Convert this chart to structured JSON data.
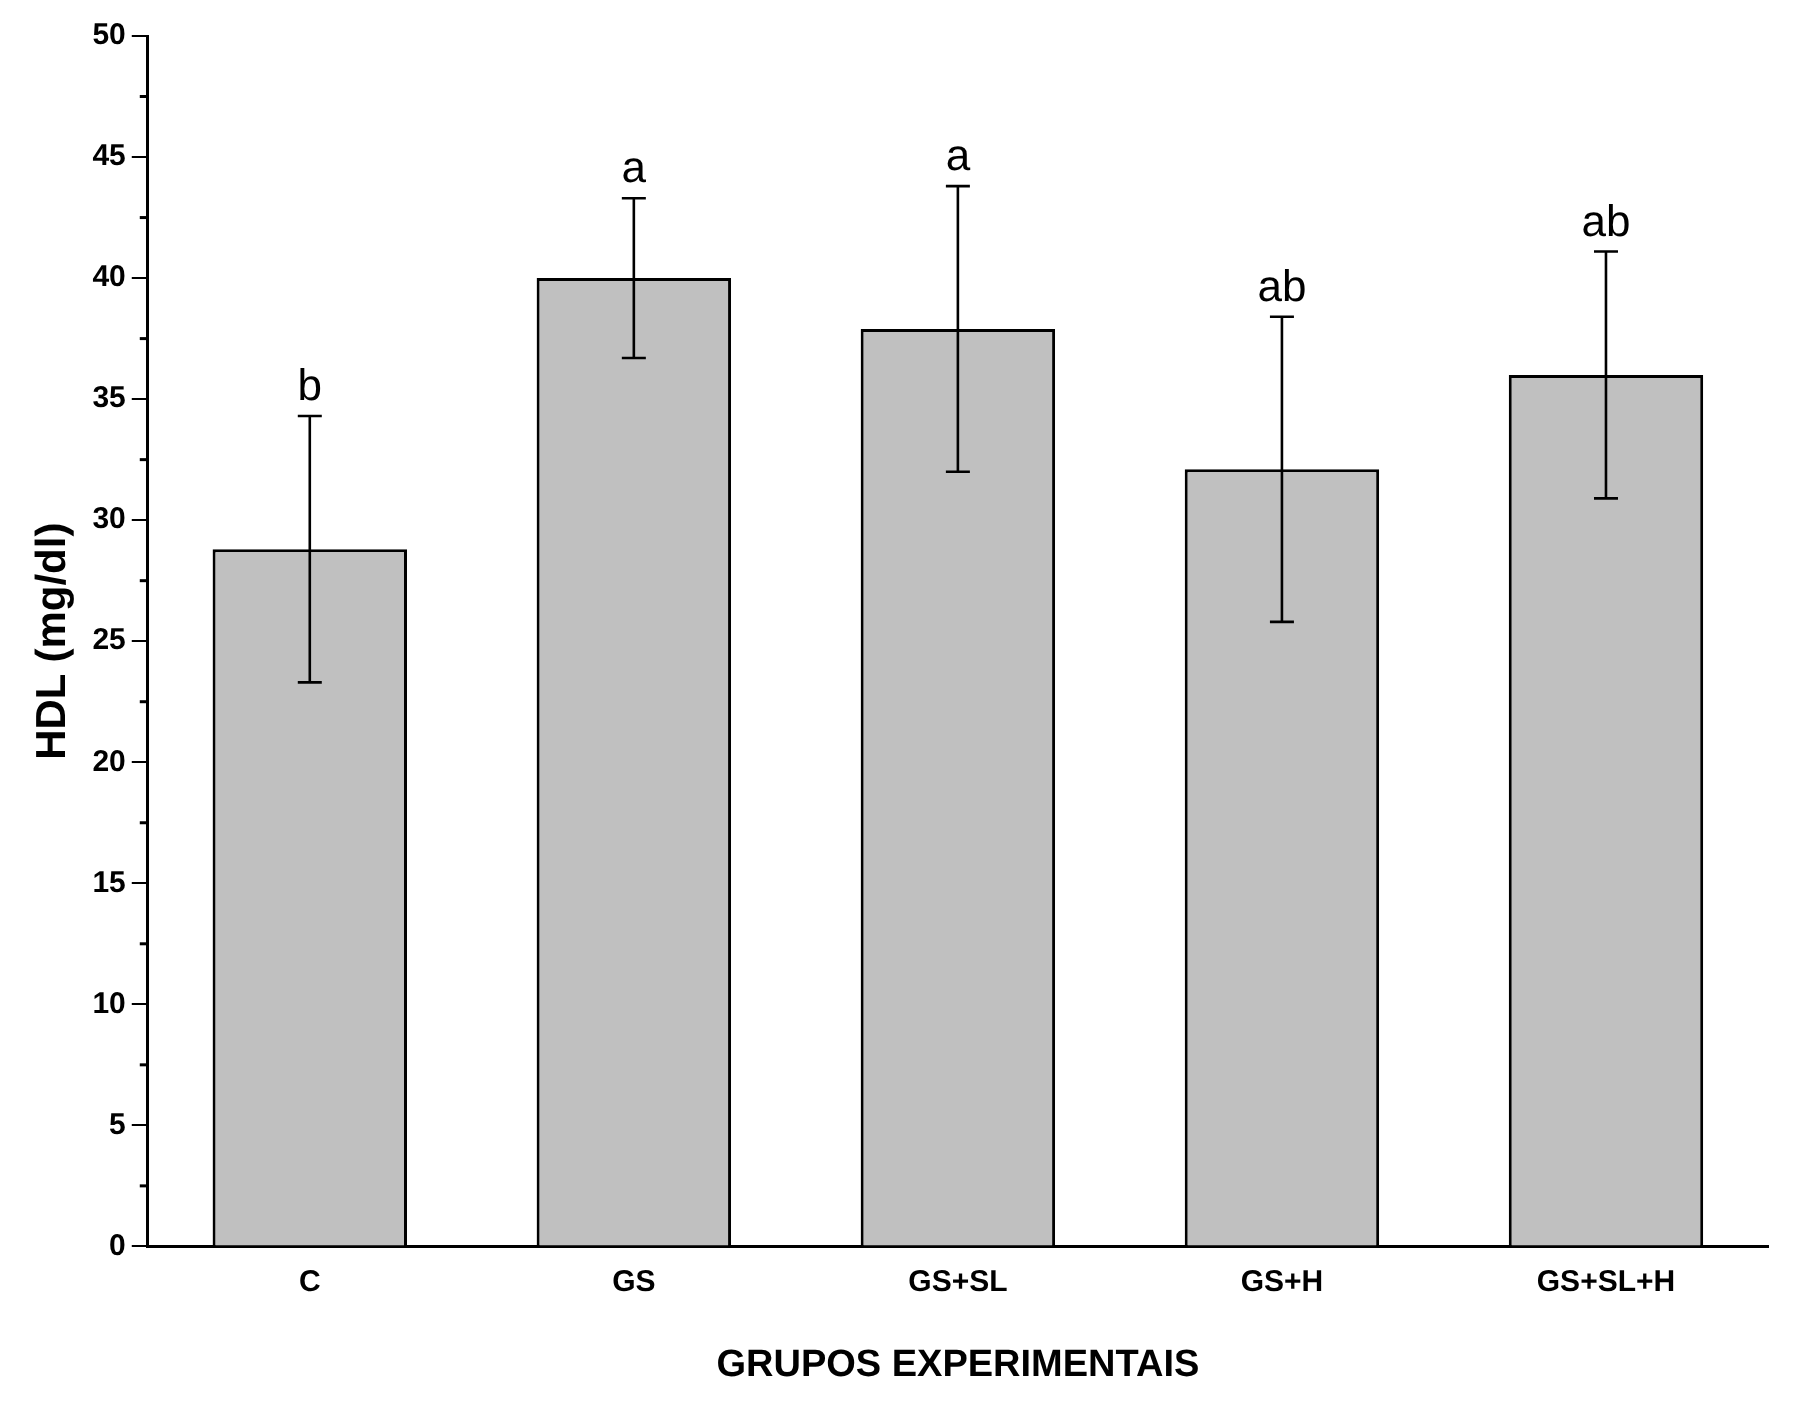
{
  "chart_data": {
    "type": "bar",
    "xlabel": "GRUPOS EXPERIMENTAIS",
    "ylabel": "HDL (mg/dl)",
    "categories": [
      "C",
      "GS",
      "GS+SL",
      "GS+H",
      "GS+SL+H"
    ],
    "values": [
      28.8,
      40.0,
      37.9,
      32.1,
      36.0
    ],
    "errors": [
      5.5,
      3.3,
      5.9,
      6.3,
      5.1
    ],
    "color": "#c0c0c0",
    "ylim": [
      0,
      50
    ],
    "yticks": [
      0,
      5,
      10,
      15,
      20,
      25,
      30,
      35,
      40,
      45,
      50
    ],
    "grid": false,
    "legend": false,
    "annotations": [
      {
        "text": "b",
        "x": "C",
        "y": 34.3
      },
      {
        "text": "a",
        "x": "GS",
        "y": 43.3
      },
      {
        "text": "a",
        "x": "GS+SL",
        "y": 43.8
      },
      {
        "text": "ab",
        "x": "GS+H",
        "y": 38.4
      },
      {
        "text": "ab",
        "x": "GS+SL+H",
        "y": 41.1
      }
    ]
  }
}
